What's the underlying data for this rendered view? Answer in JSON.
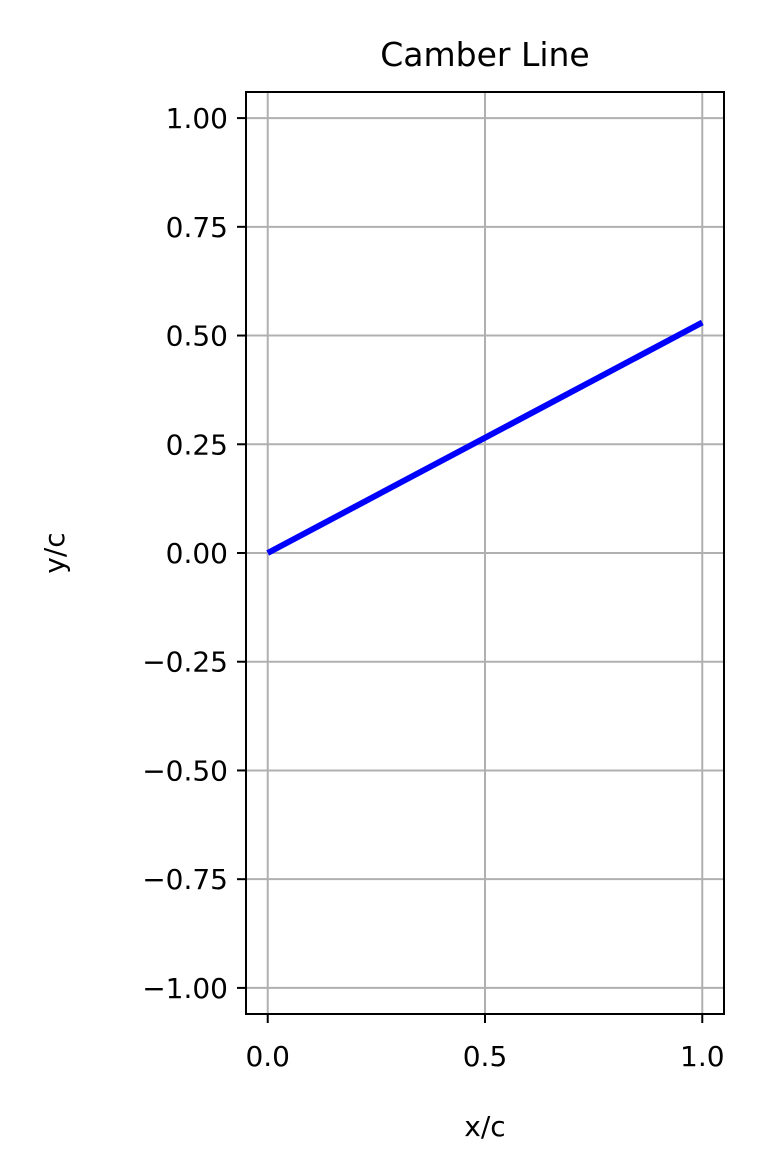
{
  "chart_data": {
    "type": "line",
    "title": "Camber Line",
    "xlabel": "x/c",
    "ylabel": "y/c",
    "xlim": [
      -0.05,
      1.05
    ],
    "ylim": [
      -1.06,
      1.06
    ],
    "xticks": [
      0.0,
      0.5,
      1.0
    ],
    "xtick_labels": [
      "0.0",
      "0.5",
      "1.0"
    ],
    "yticks": [
      1.0,
      0.75,
      0.5,
      0.25,
      0.0,
      -0.25,
      -0.5,
      -0.75,
      -1.0
    ],
    "ytick_labels": [
      "1.00",
      "0.75",
      "0.50",
      "0.25",
      "0.00",
      "−0.25",
      "−0.50",
      "−0.75",
      "−1.00"
    ],
    "grid": true,
    "series": [
      {
        "color": "#0000ff",
        "x": [
          0.0,
          0.25,
          0.5,
          0.75,
          1.0
        ],
        "y": [
          0.0,
          0.1325,
          0.265,
          0.3975,
          0.53
        ]
      }
    ]
  }
}
